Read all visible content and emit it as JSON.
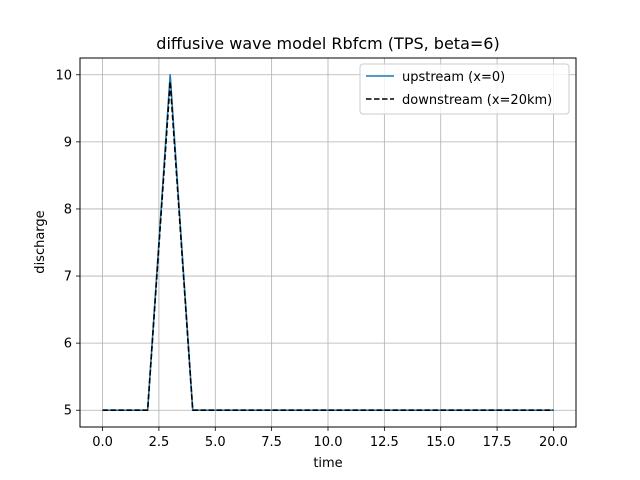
{
  "chart_data": {
    "type": "line",
    "title": "diffusive wave model Rbfcm (TPS, beta=6)",
    "xlabel": "time",
    "ylabel": "discharge",
    "xlim": [
      -1.0,
      21.0
    ],
    "ylim": [
      4.75,
      10.25
    ],
    "xticks": [
      0.0,
      2.5,
      5.0,
      7.5,
      10.0,
      12.5,
      15.0,
      17.5,
      20.0
    ],
    "xtick_labels": [
      "0.0",
      "2.5",
      "5.0",
      "7.5",
      "10.0",
      "12.5",
      "15.0",
      "17.5",
      "20.0"
    ],
    "yticks": [
      5,
      6,
      7,
      8,
      9,
      10
    ],
    "ytick_labels": [
      "5",
      "6",
      "7",
      "8",
      "9",
      "10"
    ],
    "grid": true,
    "legend_position": "top-right",
    "series": [
      {
        "name": "upstream (x=0)",
        "color": "#1f77b4",
        "line_style": "solid",
        "x": [
          0,
          1,
          2,
          3,
          4,
          5,
          6,
          7,
          8,
          9,
          10,
          11,
          12,
          13,
          14,
          15,
          16,
          17,
          18,
          19,
          20
        ],
        "y": [
          5,
          5,
          5,
          10,
          5,
          5,
          5,
          5,
          5,
          5,
          5,
          5,
          5,
          5,
          5,
          5,
          5,
          5,
          5,
          5,
          5
        ]
      },
      {
        "name": "downstream (x=20km)",
        "color": "#000000",
        "line_style": "dashed",
        "x": [
          0,
          1,
          2,
          3,
          4,
          5,
          6,
          7,
          8,
          9,
          10,
          11,
          12,
          13,
          14,
          15,
          16,
          17,
          18,
          19,
          20
        ],
        "y": [
          5,
          5,
          5,
          9.9,
          5,
          5,
          5,
          5,
          5,
          5,
          5,
          5,
          5,
          5,
          5,
          5,
          5,
          5,
          5,
          5,
          5
        ]
      }
    ]
  }
}
